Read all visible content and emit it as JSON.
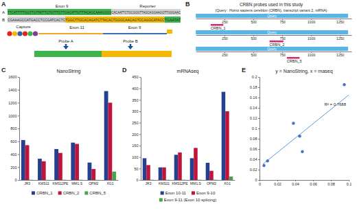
{
  "panel_labels": [
    "A",
    "B",
    "C",
    "D",
    "E"
  ],
  "diagram_a": {
    "sequences": [
      {
        "label": "A",
        "segments": [
          {
            "text": "TTCATTTTTGGTTGTTATTTCTGTTTCTTGACATTGTTTACAGCAAAGGGG",
            "color": "#3db54a"
          },
          {
            "text": "CACAATTCTGCGGGTTAGCAGGAAGGTTGGGAAC",
            "color": "#d4d4d4"
          }
        ]
      },
      {
        "label": "B",
        "segments": [
          {
            "text": "CGAAAGCCATGACCTCCGATCACTC",
            "color": "#d4d4d4"
          },
          {
            "text": "TGGCTTGCACAGATCTTACACTGGGCAACAGTCCAGGCATACC",
            "color": "#f5b800"
          },
          {
            "text": "TGAATAT",
            "color": "#3db54a"
          }
        ]
      }
    ],
    "labels": [
      "Exon 9",
      "Reporter",
      "Capture",
      "Exon 11",
      "Exon 9",
      "Probe A",
      "Probe B"
    ]
  },
  "diagram_b": {
    "title": "CRBN probes used in this study",
    "subtitle": "(Query : Homo sapiens cereblon (CRBN), transcript variant 2, mRNA)",
    "xlim": [
      0,
      1350
    ],
    "xticks": [
      250,
      500,
      750,
      1000,
      1250
    ],
    "query": {
      "label": "Query",
      "start": 1,
      "end": 1320
    },
    "probes": [
      {
        "label": "CRBN_1",
        "start": 130,
        "end": 240
      },
      {
        "label": "CRBN_2",
        "start": 640,
        "end": 760
      },
      {
        "label": "CRBN_5",
        "start": 790,
        "end": 900
      }
    ]
  },
  "chart_data": [
    {
      "type": "bar",
      "title": "NanoString",
      "categories": [
        "JR3",
        "KMS11",
        "KMS12PE",
        "MM1.S",
        "OPM2",
        "XG1"
      ],
      "series": [
        {
          "name": "CRBN_1",
          "color": "#24408e",
          "values": [
            620,
            330,
            480,
            580,
            270,
            1380
          ]
        },
        {
          "name": "CRBN_2",
          "color": "#c0143c",
          "values": [
            540,
            290,
            420,
            560,
            170,
            1200
          ]
        },
        {
          "name": "CRBN_5",
          "color": "#4aa34a",
          "values": [
            3,
            2,
            3,
            3,
            2,
            130
          ]
        }
      ],
      "ylim": [
        0,
        1600
      ],
      "yticks": [
        0,
        200,
        400,
        600,
        800,
        1000,
        1200,
        1400,
        1600
      ],
      "grid": false,
      "legend": "bottom"
    },
    {
      "type": "bar",
      "title": "mRNAseq",
      "categories": [
        "JR3",
        "KMS11",
        "KMS12PE",
        "MM1.S",
        "OPM2",
        "XG1"
      ],
      "series": [
        {
          "name": "Exon 10-11",
          "color": "#24408e",
          "values": [
            95,
            55,
            110,
            95,
            75,
            385
          ]
        },
        {
          "name": "Exon 9-10",
          "color": "#c0143c",
          "values": [
            65,
            55,
            120,
            140,
            40,
            300
          ]
        },
        {
          "name": "Exon 9-11 (Exon 10 splicing)",
          "color": "#4aa34a",
          "values": [
            1,
            1,
            1,
            1,
            1,
            15
          ]
        }
      ],
      "ylim": [
        0,
        450
      ],
      "yticks": [
        0,
        50,
        100,
        150,
        200,
        250,
        300,
        350,
        400,
        450
      ],
      "grid": false,
      "legend": "bottom"
    },
    {
      "type": "scatter",
      "title": "y = NanoString, x = rnaseq",
      "x": [
        0.005,
        0.009,
        0.038,
        0.045,
        0.048,
        0.095
      ],
      "values": [
        0.028,
        0.037,
        0.11,
        0.085,
        0.055,
        0.185
      ],
      "color": "#4472c4",
      "trendline": {
        "x": [
          0.004,
          0.1
        ],
        "values": [
          0.031,
          0.165
        ]
      },
      "annotations": [
        "R² = 0.7688"
      ],
      "xlim": [
        0,
        0.1
      ],
      "xticks": [
        0,
        0.02,
        0.04,
        0.06,
        0.08,
        0.1
      ],
      "ylim": [
        0,
        0.2
      ],
      "yticks": [
        0,
        0.02,
        0.04,
        0.06,
        0.08,
        0.1,
        0.12,
        0.14,
        0.16,
        0.18,
        0.2
      ],
      "grid": false
    }
  ]
}
